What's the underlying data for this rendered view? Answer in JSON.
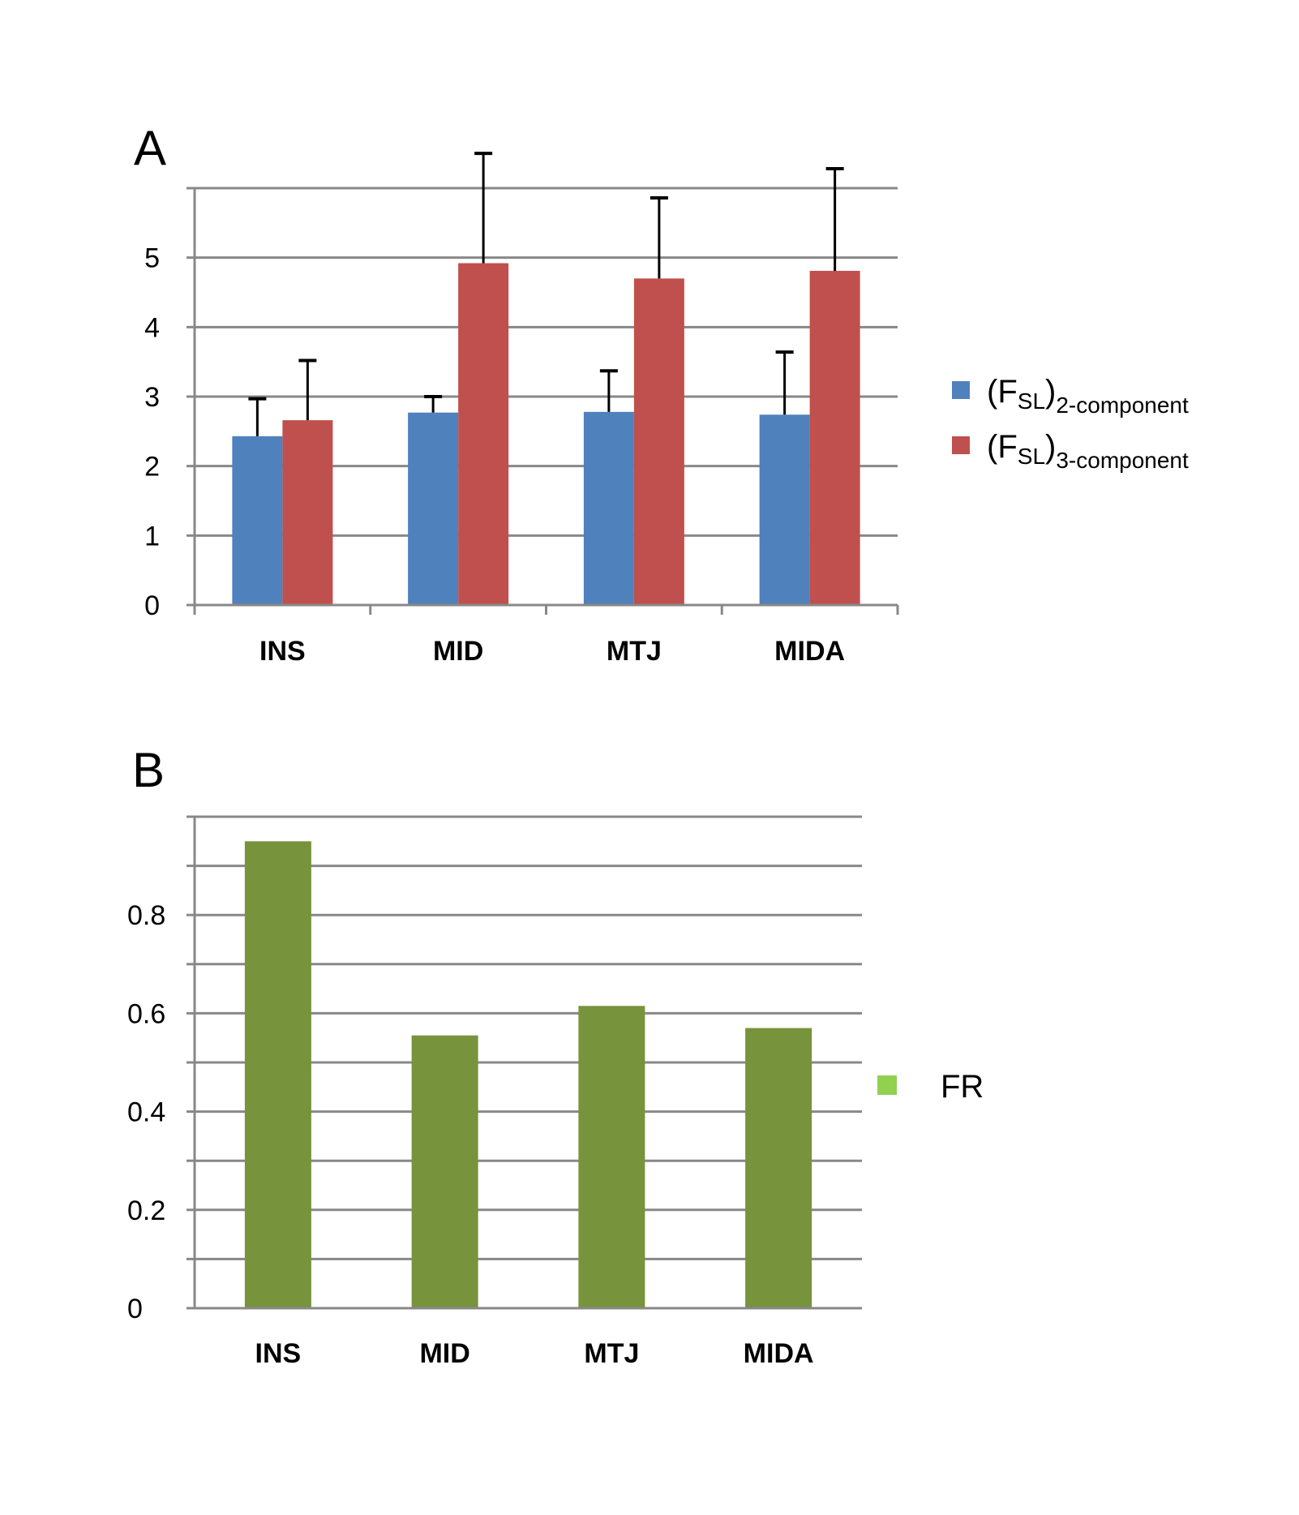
{
  "chart_data": [
    {
      "type": "bar",
      "panel_label": "A",
      "categories": [
        "INS",
        "MID",
        "MTJ",
        "MIDA"
      ],
      "ylim": [
        0,
        6
      ],
      "yticks": [
        0,
        1,
        2,
        3,
        4,
        5
      ],
      "grid": true,
      "legend_position": "right",
      "series": [
        {
          "name": "(FSL)2-component",
          "legend_main": "(F",
          "legend_sub1": "SL",
          "legend_close": ")",
          "legend_sub2": "2-component",
          "color": "#4F81BD",
          "values": [
            2.43,
            2.77,
            2.78,
            2.74
          ],
          "error": [
            0.54,
            0.23,
            0.59,
            0.9
          ]
        },
        {
          "name": "(FSL)3-component",
          "legend_main": "(F",
          "legend_sub1": "SL",
          "legend_close": ")",
          "legend_sub2": "3-component",
          "color": "#C0504D",
          "values": [
            2.66,
            4.92,
            4.7,
            4.81
          ],
          "error": [
            0.86,
            1.58,
            1.16,
            1.47
          ]
        }
      ]
    },
    {
      "type": "bar",
      "panel_label": "B",
      "categories": [
        "INS",
        "MID",
        "MTJ",
        "MIDA"
      ],
      "ylim": [
        0,
        1.0
      ],
      "yticks": [
        0,
        0.2,
        0.4,
        0.6,
        0.8
      ],
      "ytick_labels": [
        "0",
        "0.2",
        "0.4",
        "0.6",
        "0.8"
      ],
      "grid": true,
      "legend_position": "right",
      "series": [
        {
          "name": "FR",
          "color": "#77933C",
          "legend_color": "#92D050",
          "values": [
            0.95,
            0.555,
            0.615,
            0.57
          ]
        }
      ]
    }
  ]
}
